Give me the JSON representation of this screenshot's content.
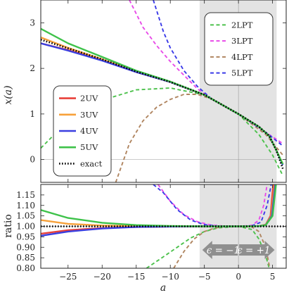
{
  "chart_data": [
    {
      "panel": "top",
      "type": "line",
      "xlabel": "a",
      "ylabel": "x(a)",
      "xlim": [
        -29,
        7
      ],
      "ylim": [
        -0.5,
        3.5
      ],
      "xticks": [
        -25,
        -20,
        -15,
        -10,
        -5,
        0,
        5
      ],
      "yticks": [
        0,
        1,
        2,
        3
      ],
      "ytick_labels": [
        "0",
        "1",
        "2",
        "3"
      ],
      "shaded_region": [
        -5.7,
        5.6
      ],
      "legend_uv": [
        "2UV",
        "3UV",
        "4UV",
        "5UV",
        "exact"
      ],
      "legend_lpt": [
        "2LPT",
        "3LPT",
        "4LPT",
        "5LPT"
      ],
      "colors": {
        "2": "#e8413a",
        "3": "#f7a13a",
        "4": "#3a3fe0",
        "5": "#3ec24a",
        "lpt2": "#4cc14c",
        "lpt3": "#e84be8",
        "lpt4": "#b08560",
        "lpt5": "#3a3ae8",
        "exact": "#000000"
      },
      "series": [
        {
          "name": "2UV",
          "style": "solid",
          "color_key": "2",
          "x": [
            -29,
            -25,
            -20,
            -15,
            -10,
            -5,
            0,
            3,
            4.5,
            5.5,
            6.5
          ],
          "y": [
            2.55,
            2.4,
            2.18,
            1.92,
            1.7,
            1.42,
            1.0,
            0.72,
            0.52,
            0.22,
            -0.1
          ]
        },
        {
          "name": "3UV",
          "style": "solid",
          "color_key": "3",
          "x": [
            -29,
            -25,
            -20,
            -15,
            -10,
            -5,
            0,
            3,
            4.5,
            5.5,
            6.5
          ],
          "y": [
            2.68,
            2.45,
            2.2,
            1.93,
            1.7,
            1.42,
            1.0,
            0.72,
            0.52,
            0.22,
            -0.1
          ]
        },
        {
          "name": "4UV",
          "style": "solid",
          "color_key": "4",
          "x": [
            -29,
            -25,
            -20,
            -15,
            -10,
            -5,
            0,
            3,
            4.5,
            5.5,
            6.5
          ],
          "y": [
            2.55,
            2.39,
            2.17,
            1.92,
            1.7,
            1.42,
            1.0,
            0.72,
            0.52,
            0.22,
            -0.12
          ]
        },
        {
          "name": "5UV",
          "style": "solid",
          "color_key": "5",
          "x": [
            -29,
            -25,
            -20,
            -15,
            -10,
            -5,
            0,
            3,
            4.5,
            5.5,
            6.5
          ],
          "y": [
            2.87,
            2.55,
            2.25,
            1.95,
            1.71,
            1.42,
            1.0,
            0.72,
            0.52,
            0.22,
            -0.1
          ]
        },
        {
          "name": "exact",
          "style": "dotted",
          "color_key": "exact",
          "x": [
            -29,
            -25,
            -20,
            -15,
            -10,
            -5,
            0,
            3,
            4.5,
            5.5,
            6.5
          ],
          "y": [
            2.63,
            2.44,
            2.2,
            1.93,
            1.7,
            1.42,
            1.0,
            0.72,
            0.52,
            0.22,
            -0.2
          ]
        },
        {
          "name": "2LPT",
          "style": "dashed",
          "color_key": "lpt2",
          "x": [
            -29,
            -25,
            -20,
            -15,
            -10,
            -5,
            0,
            3,
            5,
            6.5
          ],
          "y": [
            0.25,
            0.85,
            1.3,
            1.53,
            1.57,
            1.42,
            1.0,
            0.55,
            0.1,
            -0.35
          ]
        },
        {
          "name": "3LPT",
          "style": "dashed",
          "color_key": "lpt3",
          "x": [
            -16,
            -14,
            -12,
            -10,
            -8,
            -6,
            -4,
            0,
            4,
            5,
            6.5
          ],
          "y": [
            3.5,
            2.9,
            2.5,
            2.15,
            1.85,
            1.55,
            1.33,
            1.0,
            0.6,
            0.5,
            0.35
          ]
        },
        {
          "name": "4LPT",
          "style": "dashed",
          "color_key": "lpt4",
          "x": [
            -18,
            -16,
            -14,
            -12,
            -10,
            -8,
            -6,
            -4,
            0,
            4,
            6.5
          ],
          "y": [
            -0.5,
            0.35,
            0.85,
            1.15,
            1.32,
            1.43,
            1.43,
            1.33,
            1.0,
            0.55,
            0.1
          ]
        },
        {
          "name": "5LPT",
          "style": "dashed",
          "color_key": "lpt5",
          "x": [
            -12.5,
            -11,
            -10,
            -8,
            -6,
            -4,
            0,
            4,
            6.5
          ],
          "y": [
            3.5,
            2.8,
            2.45,
            1.95,
            1.6,
            1.34,
            1.0,
            0.6,
            0.3
          ]
        }
      ]
    },
    {
      "panel": "bottom",
      "type": "line",
      "xlabel": "a",
      "ylabel": "ratio",
      "xlim": [
        -29,
        7
      ],
      "ylim": [
        0.8,
        1.2
      ],
      "xticks": [
        -25,
        -20,
        -15,
        -10,
        -5,
        0,
        5
      ],
      "yticks": [
        0.8,
        0.85,
        0.9,
        0.95,
        1.0,
        1.05,
        1.1,
        1.15
      ],
      "ytick_labels": [
        "0.80",
        "0.85",
        "0.90",
        "0.95",
        "1.00",
        "1.05",
        "1.10",
        "1.15"
      ],
      "region_labels": [
        "ϵ = −1",
        "ϵ = +1"
      ],
      "series": [
        {
          "name": "2UV",
          "style": "solid",
          "color_key": "2",
          "x": [
            -29,
            -25,
            -20,
            -15,
            -10,
            -5,
            0,
            3,
            4,
            4.7,
            5.1
          ],
          "y": [
            0.965,
            0.982,
            0.992,
            0.997,
            0.999,
            1.0,
            1.0,
            1.001,
            1.008,
            1.05,
            1.2
          ]
        },
        {
          "name": "3UV",
          "style": "solid",
          "color_key": "3",
          "x": [
            -29,
            -25,
            -20,
            -15,
            -10,
            -5,
            0,
            3,
            4,
            4.8,
            5.3
          ],
          "y": [
            1.03,
            1.012,
            1.004,
            1.001,
            1.0,
            1.0,
            1.0,
            1.001,
            1.007,
            1.05,
            1.2
          ]
        },
        {
          "name": "4UV",
          "style": "solid",
          "color_key": "4",
          "x": [
            -29,
            -25,
            -20,
            -15,
            -10,
            -5,
            0,
            3,
            4,
            4.9,
            5.4
          ],
          "y": [
            0.955,
            0.975,
            0.99,
            0.997,
            0.999,
            1.0,
            1.0,
            1.001,
            1.006,
            1.05,
            1.2
          ]
        },
        {
          "name": "5UV",
          "style": "solid",
          "color_key": "5",
          "x": [
            -29,
            -25,
            -20,
            -15,
            -10,
            -5,
            0,
            3,
            4,
            5.0,
            5.5
          ],
          "y": [
            1.078,
            1.04,
            1.017,
            1.006,
            1.002,
            1.0,
            1.0,
            1.001,
            1.006,
            1.05,
            1.2
          ]
        },
        {
          "name": "exact",
          "style": "dotted",
          "color_key": "exact",
          "x": [
            -29,
            7
          ],
          "y": [
            1.0,
            1.0
          ]
        },
        {
          "name": "2LPT",
          "style": "dashed",
          "color_key": "lpt2",
          "x": [
            -13.5,
            -11,
            -9,
            -7,
            -5,
            -3,
            0,
            2,
            3,
            4,
            4.5
          ],
          "y": [
            0.8,
            0.855,
            0.9,
            0.945,
            0.975,
            0.993,
            1.0,
            0.985,
            0.94,
            0.86,
            0.8
          ]
        },
        {
          "name": "3LPT",
          "style": "dashed",
          "color_key": "lpt3",
          "x": [
            -11.8,
            -10,
            -8,
            -6,
            -4,
            -2,
            0,
            2,
            3,
            3.7,
            4.2
          ],
          "y": [
            1.2,
            1.12,
            1.055,
            1.022,
            1.006,
            1.001,
            1.0,
            1.005,
            1.03,
            1.1,
            1.2
          ]
        },
        {
          "name": "4LPT",
          "style": "dashed",
          "color_key": "lpt4",
          "x": [
            -9.5,
            -8,
            -6.5,
            -5,
            -3.5,
            -2,
            0,
            2,
            3,
            4,
            4.6
          ],
          "y": [
            0.8,
            0.88,
            0.94,
            0.975,
            0.992,
            0.999,
            1.0,
            0.997,
            0.975,
            0.9,
            0.8
          ]
        },
        {
          "name": "5LPT",
          "style": "dashed",
          "color_key": "lpt5",
          "x": [
            -12.5,
            -11,
            -9,
            -7,
            -5,
            -3,
            0,
            2,
            3.3,
            4.2,
            4.8
          ],
          "y": [
            1.2,
            1.16,
            1.08,
            1.03,
            1.008,
            1.002,
            1.0,
            1.003,
            1.02,
            1.1,
            1.2
          ]
        }
      ]
    }
  ]
}
